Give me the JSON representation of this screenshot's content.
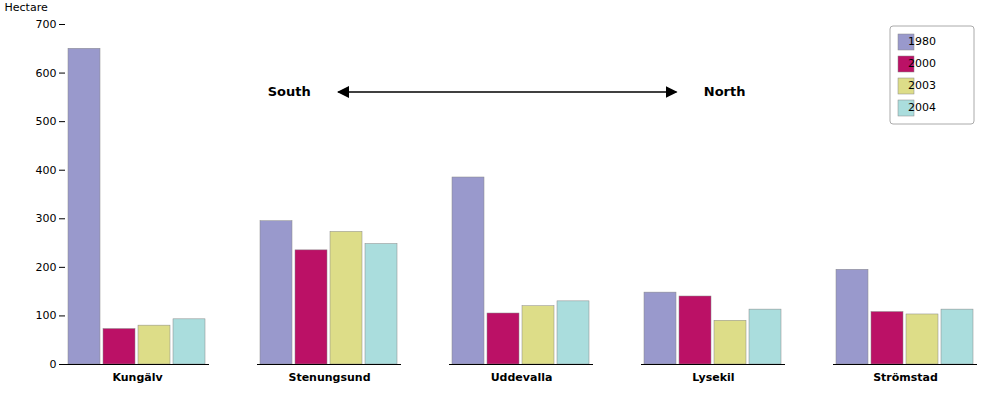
{
  "chart_data": {
    "type": "bar",
    "categories": [
      "Kungälv",
      "Stenungsund",
      "Uddevalla",
      "Lysekil",
      "Strömstad"
    ],
    "series": [
      {
        "name": "1980",
        "color": "#9999cc",
        "values": [
          650,
          295,
          385,
          148,
          195
        ]
      },
      {
        "name": "2000",
        "color": "#bb1166",
        "values": [
          73,
          235,
          105,
          140,
          108
        ]
      },
      {
        "name": "2003",
        "color": "#dddd88",
        "values": [
          80,
          273,
          120,
          90,
          103
        ]
      },
      {
        "name": "2004",
        "color": "#aadddd",
        "values": [
          93,
          248,
          130,
          113,
          113
        ]
      }
    ],
    "ylabel": "Hectare",
    "ylim": [
      0,
      700
    ],
    "yticks": [
      0,
      100,
      200,
      300,
      400,
      500,
      600,
      700
    ],
    "annotations": [
      "South",
      "North"
    ],
    "legend": "upper right",
    "grid": false
  }
}
